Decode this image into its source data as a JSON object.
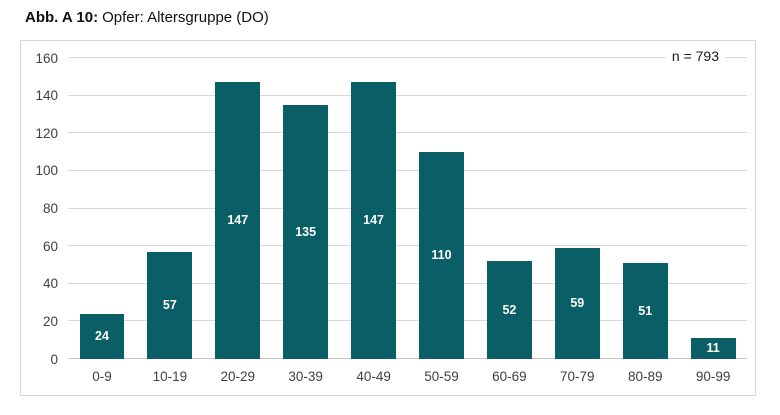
{
  "figure": {
    "title_prefix": "Abb. A 10:",
    "title_text": "Opfer: Altersgruppe (DO)",
    "n_label": "n = 793"
  },
  "chart_data": {
    "type": "bar",
    "title": "Opfer: Altersgruppe (DO)",
    "categories": [
      "0-9",
      "10-19",
      "20-29",
      "30-39",
      "40-49",
      "50-59",
      "60-69",
      "70-79",
      "80-89",
      "90-99"
    ],
    "values": [
      24,
      57,
      147,
      135,
      147,
      110,
      52,
      59,
      51,
      11
    ],
    "annotations": [
      "n = 793"
    ],
    "xlabel": "",
    "ylabel": "",
    "ylim": [
      0,
      160
    ],
    "yticks": [
      0,
      20,
      40,
      60,
      80,
      100,
      120,
      140,
      160
    ],
    "grid": true,
    "legend": false,
    "bar_color": "#0a5e66",
    "value_label_color": "#ffffff",
    "gridline_color": "#d9d9d9",
    "axis_text_color": "#404040",
    "border_color": "#d7d7d7"
  }
}
